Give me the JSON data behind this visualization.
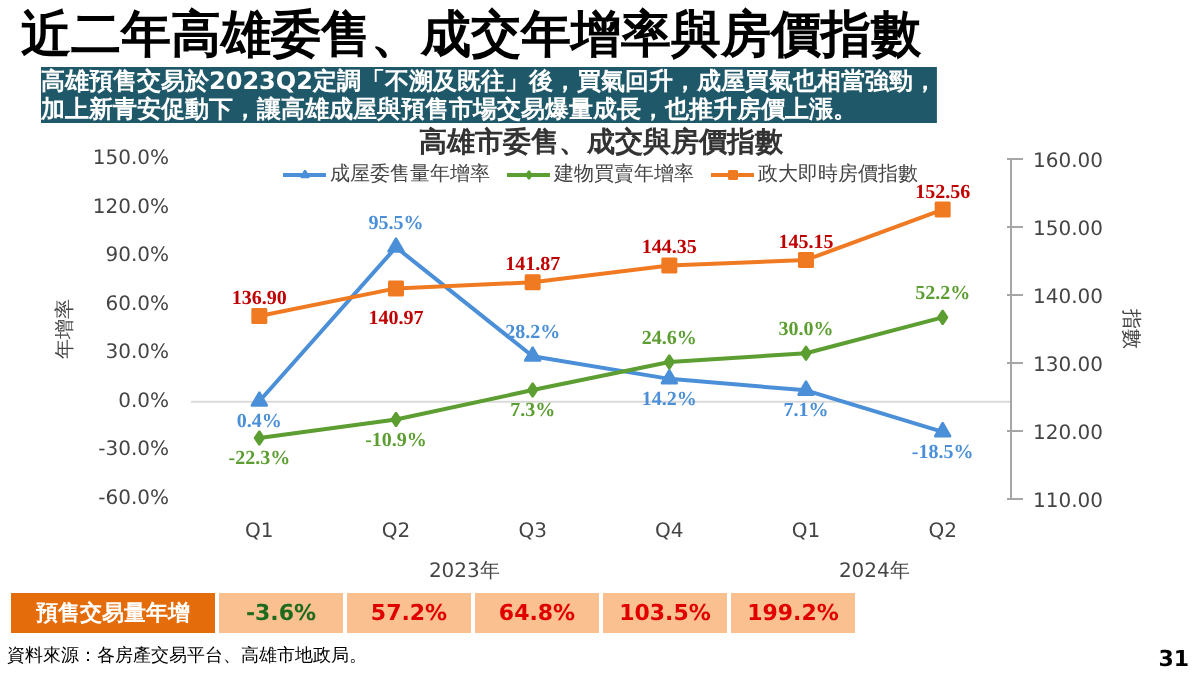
{
  "chart_data": {
    "type": "line",
    "title": "近二年高雄委售、成交年增率與房價指數",
    "subtitle": "高雄市委售、成交與房價指數",
    "categories": [
      "Q1",
      "Q2",
      "Q3",
      "Q4",
      "Q1",
      "Q2"
    ],
    "ylabel": "年增率",
    "y2label": "指數",
    "ylim": [
      -60,
      150
    ],
    "yticks": [
      {
        "value": -60,
        "label": "-60.0%"
      },
      {
        "value": -30,
        "label": "-30.0%"
      },
      {
        "value": 0,
        "label": "0.0%"
      },
      {
        "value": 30,
        "label": "30.0%"
      },
      {
        "value": 60,
        "label": "60.0%"
      },
      {
        "value": 90,
        "label": "90.0%"
      },
      {
        "value": 120,
        "label": "120.0%"
      },
      {
        "value": 150,
        "label": "150.0%"
      }
    ],
    "y2lim": [
      110,
      160
    ],
    "y2ticks": [
      {
        "value": 110,
        "label": "110.00"
      },
      {
        "value": 120,
        "label": "120.00"
      },
      {
        "value": 130,
        "label": "130.00"
      },
      {
        "value": 140,
        "label": "140.00"
      },
      {
        "value": 150,
        "label": "150.00"
      },
      {
        "value": 160,
        "label": "160.00"
      }
    ],
    "series": [
      {
        "name": "成屋委售量年增率",
        "color": "#4a8fd8",
        "marker": "triangle",
        "values": [
          0.4,
          95.5,
          28.2,
          14.2,
          7.1,
          -18.5
        ],
        "value_labels": [
          "0.4%",
          "95.5%",
          "28.2%",
          "14.2%",
          "7.1%",
          "-18.5%"
        ]
      },
      {
        "name": "建物買賣年增率",
        "color": "#5c9e31",
        "marker": "diamond",
        "values": [
          -22.3,
          -10.9,
          7.3,
          24.6,
          30.0,
          52.2
        ],
        "value_labels": [
          "-22.3%",
          "-10.9%",
          "7.3%",
          "24.6%",
          "30.0%",
          "52.2%"
        ]
      },
      {
        "name": "政大即時房價指數",
        "color": "#f07a22",
        "marker": "square",
        "axis": "y2",
        "values": [
          136.9,
          140.97,
          141.87,
          144.35,
          145.15,
          152.56
        ],
        "value_labels": [
          "136.90",
          "140.97",
          "141.87",
          "144.35",
          "145.15",
          "152.56"
        ]
      }
    ],
    "ref_lines": [
      {
        "axis": "y",
        "value": 0,
        "color": "#d9d9d9"
      }
    ],
    "legend": "top",
    "grid": false,
    "annotations": [
      "高雄預售交易於2023Q2定調「不溯及既往」後，買氣回升，成屋買氣也相當強勁，加上新青安促動下，讓高雄成屋與預售市場交易爆量成長，也推升房價上漲。",
      "預售交易量年增",
      "-3.6%",
      "57.2%",
      "64.8%",
      "103.5%",
      "199.2%",
      "2023年",
      "2024年",
      "資料來源：各房產交易平台、高雄市地政局。",
      "31"
    ]
  }
}
